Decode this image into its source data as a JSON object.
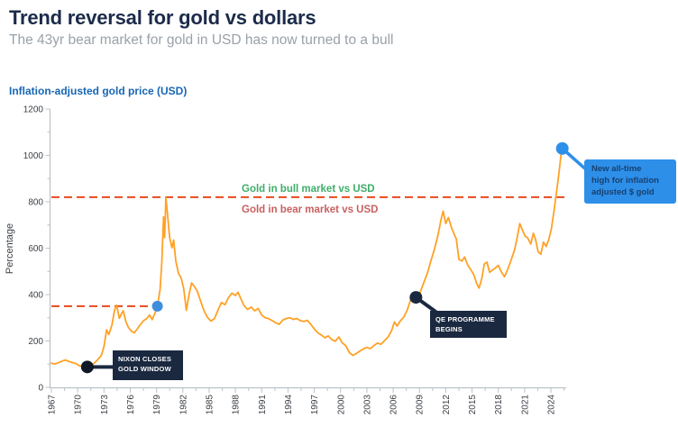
{
  "header": {
    "title": "Trend reversal for gold vs dollars",
    "subtitle": "The 43yr bear market for gold in USD has now turned to a bull"
  },
  "chart_data": {
    "type": "line",
    "title": "Inflation-adjusted gold price (USD)",
    "ylabel": "Percentage",
    "ylim": [
      0,
      1200
    ],
    "xlim": [
      1967,
      2026
    ],
    "grid": false,
    "legend_position": "none",
    "y_ticks": [
      0,
      200,
      400,
      600,
      800,
      1000,
      1200
    ],
    "x_ticks": [
      1967,
      1970,
      1973,
      1976,
      1979,
      1982,
      1985,
      1988,
      1991,
      1994,
      1997,
      2000,
      2003,
      2006,
      2009,
      2012,
      2015,
      2018,
      2021,
      2024
    ],
    "colors": {
      "line": "#FFA125",
      "reference_dash": "#E8491D",
      "bull_text": "#3FAE6A",
      "bear_text": "#C96060",
      "navy": "#1A2940",
      "blue": "#2E8FE9",
      "axis": "#BDC1C6",
      "tick_text": "#3B4046"
    },
    "reference_lines": [
      {
        "name": "bull-bear-threshold",
        "value": 820,
        "from_year": 1967,
        "to_year": 2026,
        "label_above": "Gold in bull market vs USD",
        "label_below": "Gold in bear market vs USD"
      },
      {
        "name": "1979-retest-level",
        "value": 350,
        "from_year": 1967,
        "to_year": 1979.1
      }
    ],
    "markers": [
      {
        "name": "nixon-marker",
        "year": 1971.1,
        "value": 88,
        "color": "#101826",
        "radius": 7
      },
      {
        "name": "gold-1979-marker",
        "year": 1979.1,
        "value": 350,
        "color": "#3E8EDE",
        "radius": 6
      },
      {
        "name": "qe-marker",
        "year": 2008.6,
        "value": 388,
        "color": "#1A2940",
        "radius": 7
      },
      {
        "name": "new-high-marker",
        "year": 2025.3,
        "value": 1030,
        "color": "#2E8FE9",
        "radius": 7
      }
    ],
    "annotations": {
      "nixon": {
        "line1": "NIXON CLOSES",
        "line2": "GOLD WINDOW",
        "year": 1971.1,
        "value": 88
      },
      "qe": {
        "line1": "QE PROGRAMME",
        "line2": "BEGINS",
        "year": 2008.6,
        "value": 388
      },
      "new_high": {
        "line1": "New all-time",
        "line2": "high for inflation",
        "line3": "adjusted $ gold",
        "year": 2025.3,
        "value": 1030
      }
    },
    "series": [
      {
        "name": "Inflation-adjusted gold price (USD)",
        "points": [
          [
            1967,
            104
          ],
          [
            1967.4,
            101
          ],
          [
            1967.8,
            106
          ],
          [
            1968.2,
            113
          ],
          [
            1968.6,
            118
          ],
          [
            1969,
            112
          ],
          [
            1969.4,
            107
          ],
          [
            1969.8,
            103
          ],
          [
            1970.2,
            93
          ],
          [
            1970.7,
            90
          ],
          [
            1971.1,
            88
          ],
          [
            1971.5,
            93
          ],
          [
            1971.9,
            105
          ],
          [
            1972.3,
            120
          ],
          [
            1972.7,
            138
          ],
          [
            1973,
            175
          ],
          [
            1973.3,
            248
          ],
          [
            1973.55,
            228
          ],
          [
            1973.9,
            268
          ],
          [
            1974.2,
            332
          ],
          [
            1974.45,
            355
          ],
          [
            1974.75,
            298
          ],
          [
            1975,
            318
          ],
          [
            1975.2,
            330
          ],
          [
            1975.5,
            283
          ],
          [
            1975.8,
            258
          ],
          [
            1976.1,
            243
          ],
          [
            1976.45,
            235
          ],
          [
            1976.8,
            252
          ],
          [
            1977.1,
            268
          ],
          [
            1977.5,
            287
          ],
          [
            1977.9,
            297
          ],
          [
            1978.2,
            312
          ],
          [
            1978.5,
            292
          ],
          [
            1978.8,
            318
          ],
          [
            1979.1,
            350
          ],
          [
            1979.4,
            420
          ],
          [
            1979.6,
            540
          ],
          [
            1979.8,
            735
          ],
          [
            1979.92,
            645
          ],
          [
            1980.07,
            820
          ],
          [
            1980.25,
            745
          ],
          [
            1980.5,
            645
          ],
          [
            1980.75,
            602
          ],
          [
            1980.95,
            635
          ],
          [
            1981.2,
            545
          ],
          [
            1981.5,
            492
          ],
          [
            1981.8,
            472
          ],
          [
            1982.1,
            425
          ],
          [
            1982.4,
            332
          ],
          [
            1982.7,
            398
          ],
          [
            1983,
            450
          ],
          [
            1983.3,
            436
          ],
          [
            1983.65,
            415
          ],
          [
            1984,
            376
          ],
          [
            1984.4,
            332
          ],
          [
            1984.8,
            302
          ],
          [
            1985.2,
            286
          ],
          [
            1985.6,
            296
          ],
          [
            1986,
            332
          ],
          [
            1986.4,
            366
          ],
          [
            1986.8,
            356
          ],
          [
            1987.2,
            386
          ],
          [
            1987.6,
            406
          ],
          [
            1988,
            396
          ],
          [
            1988.3,
            410
          ],
          [
            1988.65,
            380
          ],
          [
            1989,
            352
          ],
          [
            1989.4,
            336
          ],
          [
            1989.8,
            346
          ],
          [
            1990.2,
            330
          ],
          [
            1990.6,
            340
          ],
          [
            1991,
            312
          ],
          [
            1991.4,
            300
          ],
          [
            1991.8,
            296
          ],
          [
            1992.2,
            288
          ],
          [
            1992.6,
            278
          ],
          [
            1993,
            272
          ],
          [
            1993.4,
            290
          ],
          [
            1993.8,
            297
          ],
          [
            1994.2,
            300
          ],
          [
            1994.6,
            293
          ],
          [
            1995,
            297
          ],
          [
            1995.4,
            288
          ],
          [
            1995.8,
            284
          ],
          [
            1996.2,
            289
          ],
          [
            1996.6,
            272
          ],
          [
            1997,
            252
          ],
          [
            1997.4,
            235
          ],
          [
            1997.8,
            226
          ],
          [
            1998.2,
            214
          ],
          [
            1998.6,
            222
          ],
          [
            1999,
            206
          ],
          [
            1999.4,
            199
          ],
          [
            1999.8,
            217
          ],
          [
            2000.2,
            192
          ],
          [
            2000.6,
            179
          ],
          [
            2001,
            150
          ],
          [
            2001.4,
            138
          ],
          [
            2001.8,
            146
          ],
          [
            2002.2,
            156
          ],
          [
            2002.6,
            166
          ],
          [
            2003,
            172
          ],
          [
            2003.4,
            167
          ],
          [
            2003.8,
            180
          ],
          [
            2004.2,
            191
          ],
          [
            2004.6,
            186
          ],
          [
            2005,
            201
          ],
          [
            2005.4,
            216
          ],
          [
            2005.8,
            242
          ],
          [
            2006.15,
            282
          ],
          [
            2006.45,
            264
          ],
          [
            2006.8,
            286
          ],
          [
            2007.2,
            302
          ],
          [
            2007.6,
            332
          ],
          [
            2008,
            378
          ],
          [
            2008.35,
            402
          ],
          [
            2008.6,
            388
          ],
          [
            2008.8,
            366
          ],
          [
            2009.1,
            412
          ],
          [
            2009.5,
            452
          ],
          [
            2009.9,
            492
          ],
          [
            2010.3,
            545
          ],
          [
            2010.7,
            595
          ],
          [
            2011.1,
            655
          ],
          [
            2011.45,
            722
          ],
          [
            2011.7,
            760
          ],
          [
            2012,
            706
          ],
          [
            2012.3,
            732
          ],
          [
            2012.65,
            690
          ],
          [
            2012.95,
            662
          ],
          [
            2013.2,
            640
          ],
          [
            2013.5,
            552
          ],
          [
            2013.85,
            545
          ],
          [
            2014.15,
            562
          ],
          [
            2014.5,
            528
          ],
          [
            2014.85,
            508
          ],
          [
            2015.2,
            486
          ],
          [
            2015.55,
            446
          ],
          [
            2015.8,
            428
          ],
          [
            2016.1,
            468
          ],
          [
            2016.4,
            532
          ],
          [
            2016.7,
            540
          ],
          [
            2017,
            496
          ],
          [
            2017.35,
            506
          ],
          [
            2017.7,
            516
          ],
          [
            2018,
            526
          ],
          [
            2018.35,
            498
          ],
          [
            2018.7,
            477
          ],
          [
            2019.05,
            506
          ],
          [
            2019.45,
            548
          ],
          [
            2019.85,
            592
          ],
          [
            2020.15,
            645
          ],
          [
            2020.45,
            706
          ],
          [
            2020.75,
            678
          ],
          [
            2021.05,
            652
          ],
          [
            2021.35,
            644
          ],
          [
            2021.7,
            618
          ],
          [
            2022,
            664
          ],
          [
            2022.25,
            638
          ],
          [
            2022.55,
            584
          ],
          [
            2022.85,
            574
          ],
          [
            2023.15,
            626
          ],
          [
            2023.45,
            608
          ],
          [
            2023.75,
            636
          ],
          [
            2024.05,
            682
          ],
          [
            2024.35,
            758
          ],
          [
            2024.55,
            818
          ],
          [
            2024.75,
            872
          ],
          [
            2024.95,
            935
          ],
          [
            2025.15,
            1002
          ],
          [
            2025.3,
            1030
          ]
        ]
      }
    ]
  }
}
